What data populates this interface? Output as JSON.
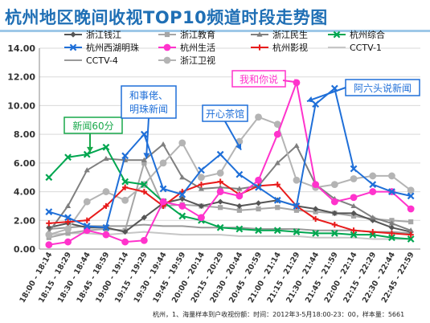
{
  "title": "杭州地区晚间收视TOP10频道时段走势图",
  "footer": "杭州，1、海量样本到户收视份额：时间：2012年3-5月18:00-23：00，样本量：5661",
  "chart_data": {
    "type": "line",
    "title": "杭州地区晚间收视TOP10频道时段走势图",
    "xlabel": "",
    "ylabel": "",
    "ylim": [
      0,
      14
    ],
    "yticks": [
      "0.00",
      "2.00",
      "4.00",
      "6.00",
      "8.00",
      "10.00",
      "12.00",
      "14.00"
    ],
    "grid": true,
    "legend_position": "top",
    "categories": [
      "18:00 - 18:14",
      "18:15 - 18:29",
      "18:30 - 18:44",
      "18:45 - 18:59",
      "19:00 - 19:14",
      "19:15 - 19:29",
      "19:30 - 19:44",
      "19:45 - 19:59",
      "20:00 - 20:14",
      "20:15 - 20:29",
      "20:30 - 20:44",
      "20:45 - 20:59",
      "21:00 - 21:14",
      "21:15 - 21:29",
      "21:30 - 21:44",
      "21:45 - 21:59",
      "22:00 - 22:14",
      "22:15 - 22:29",
      "22:30 - 22:44",
      "22:45 - 22:59"
    ],
    "series": [
      {
        "name": "浙江钱江",
        "color": "#555555",
        "marker": "diamond",
        "values": [
          1.5,
          1.8,
          1.5,
          1.5,
          1.2,
          2.2,
          3.2,
          3.5,
          3.0,
          3.3,
          3.0,
          3.2,
          3.4,
          3.0,
          2.8,
          2.5,
          2.5,
          2.0,
          1.5,
          1.2
        ]
      },
      {
        "name": "浙江教育",
        "color": "#a6a6a6",
        "marker": "square",
        "values": [
          0.8,
          1.1,
          1.3,
          1.4,
          1.3,
          6.0,
          3.0,
          3.1,
          3.0,
          2.9,
          2.7,
          2.8,
          2.9,
          2.7,
          2.6,
          2.5,
          2.3,
          2.1,
          2.0,
          1.9
        ]
      },
      {
        "name": "浙江民生",
        "color": "#7f7f7f",
        "marker": "triangle",
        "values": [
          1.2,
          3.0,
          5.5,
          6.3,
          6.2,
          6.2,
          7.3,
          5.0,
          4.2,
          4.3,
          4.2,
          4.4,
          6.0,
          7.2,
          4.5,
          3.5,
          3.0,
          2.2,
          1.8,
          1.3
        ]
      },
      {
        "name": "杭州综合",
        "color": "#00a650",
        "marker": "x",
        "values": [
          5.0,
          6.4,
          6.6,
          7.1,
          4.7,
          4.5,
          3.3,
          2.3,
          2.0,
          1.5,
          1.4,
          1.3,
          1.3,
          1.2,
          1.1,
          1.1,
          1.0,
          1.0,
          0.8,
          0.7
        ]
      },
      {
        "name": "杭州西湖明珠",
        "color": "#1f6fd8",
        "marker": "x",
        "values": [
          2.6,
          2.2,
          1.6,
          1.5,
          6.5,
          8.0,
          4.2,
          3.8,
          5.5,
          6.6,
          5.2,
          4.3,
          3.4,
          3.0,
          10.1,
          11.2,
          5.6,
          4.5,
          4.0,
          3.7
        ]
      },
      {
        "name": "杭州生活",
        "color": "#ff33cc",
        "marker": "circle",
        "values": [
          0.3,
          0.5,
          1.3,
          1.0,
          0.5,
          0.6,
          3.3,
          3.0,
          2.2,
          4.0,
          3.7,
          4.8,
          8.0,
          11.6,
          4.5,
          3.3,
          3.6,
          4.0,
          4.0,
          2.8
        ]
      },
      {
        "name": "杭州影视",
        "color": "#e81b1b",
        "marker": "plus",
        "values": [
          1.8,
          1.9,
          2.0,
          3.0,
          4.3,
          4.0,
          3.0,
          4.0,
          4.5,
          4.7,
          3.8,
          4.4,
          4.5,
          3.0,
          2.1,
          1.7,
          1.3,
          1.2,
          1.1,
          1.0
        ]
      },
      {
        "name": "CCTV-1",
        "color": "#c6c6c6",
        "marker": "none",
        "values": [
          1.0,
          1.1,
          1.1,
          1.0,
          1.1,
          1.2,
          1.1,
          1.0,
          1.0,
          1.0,
          0.9,
          0.9,
          0.9,
          0.9,
          0.8,
          0.8,
          0.8,
          0.7,
          0.7,
          0.7
        ]
      },
      {
        "name": "CCTV-4",
        "color": "#9a9a9a",
        "marker": "none",
        "values": [
          1.4,
          1.5,
          1.6,
          1.6,
          1.6,
          1.7,
          1.6,
          1.6,
          1.5,
          1.5,
          1.5,
          1.4,
          1.4,
          1.4,
          1.3,
          1.3,
          1.3,
          1.2,
          1.2,
          1.1
        ]
      },
      {
        "name": "浙江卫视",
        "color": "#b4b4b4",
        "marker": "circle",
        "values": [
          1.0,
          1.4,
          3.3,
          4.0,
          3.4,
          4.5,
          6.0,
          7.4,
          5.0,
          5.3,
          7.5,
          9.2,
          8.7,
          4.8,
          4.3,
          4.5,
          4.9,
          5.1,
          5.1,
          4.1
        ]
      }
    ],
    "annotations": [
      {
        "text": "新闻60分",
        "color": "#18a84a",
        "lines": 1
      },
      {
        "text": "和事佬、明珠新闻",
        "line1": "和事佬、",
        "line2": "明珠新闻",
        "color": "#1f6fd8",
        "lines": 2
      },
      {
        "text": "开心茶馆",
        "color": "#1f6fd8",
        "lines": 1
      },
      {
        "text": "我和你说",
        "color": "#ff33cc",
        "lines": 1
      },
      {
        "text": "阿六头说新闻",
        "color": "#1f6fd8",
        "lines": 1
      }
    ]
  }
}
